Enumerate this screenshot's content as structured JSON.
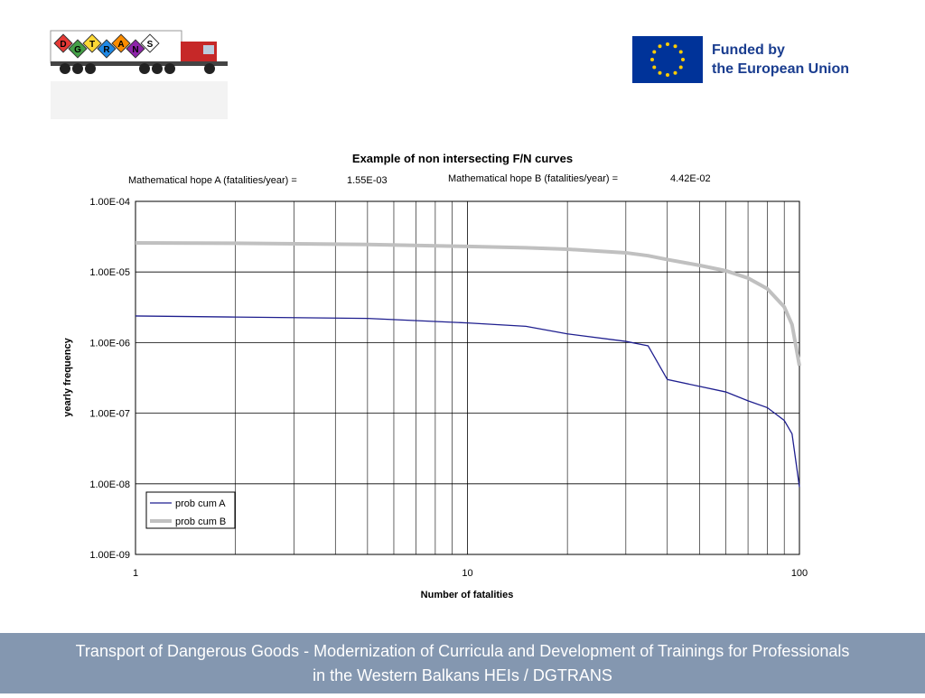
{
  "logo": {
    "letters": [
      "D",
      "G",
      "T",
      "R",
      "A",
      "N",
      "S"
    ]
  },
  "funding": {
    "lines": [
      "Funded by",
      "the European Union"
    ]
  },
  "chart_data": {
    "type": "line",
    "title": "Example of non intersecting F/N curves",
    "annotations": [
      "Mathematical hope A (fatalities/year) =",
      "1.55E-03",
      "Mathematical hope B (fatalities/year) =",
      "4.42E-02"
    ],
    "x_label": "Number of fatalities",
    "y_label": "yearly frequency",
    "x": [
      1,
      2,
      5,
      10,
      15,
      20,
      30,
      35,
      40,
      50,
      60,
      70,
      80,
      90,
      95,
      100
    ],
    "series": [
      {
        "name": "prob cum A",
        "color": "#1f1f8f",
        "values": [
          2.38e-06,
          2.3e-06,
          2.2e-06,
          1.9e-06,
          1.7e-06,
          1.33e-06,
          1.04e-06,
          9e-07,
          3e-07,
          2.4e-07,
          2e-07,
          1.5e-07,
          1.2e-07,
          7.9e-08,
          5.1e-08,
          9e-09
        ]
      },
      {
        "name": "prob cum B",
        "color": "#c0c0c0",
        "values": [
          2.58e-05,
          2.55e-05,
          2.45e-05,
          2.3e-05,
          2.2e-05,
          2.1e-05,
          1.87e-05,
          1.7e-05,
          1.5e-05,
          1.24e-05,
          1.04e-05,
          8.2e-06,
          5.8e-06,
          3.2e-06,
          1.8e-06,
          4.7e-07
        ]
      }
    ],
    "xlog": true,
    "ylog": true,
    "xlim": [
      1,
      100
    ],
    "ylim": [
      1e-09,
      0.0001
    ],
    "xticks": [
      1,
      10,
      100
    ],
    "xminorticks": [
      2,
      3,
      4,
      5,
      6,
      7,
      8,
      9,
      20,
      30,
      40,
      50,
      60,
      70,
      80,
      90
    ],
    "yticks": [
      {
        "value": 1e-09,
        "label": "1.00E-09"
      },
      {
        "value": 1e-08,
        "label": "1.00E-08"
      },
      {
        "value": 1e-07,
        "label": "1.00E-07"
      },
      {
        "value": 1e-06,
        "label": "1.00E-06"
      },
      {
        "value": 1e-05,
        "label": "1.00E-05"
      },
      {
        "value": 0.0001,
        "label": "1.00E-04"
      }
    ],
    "grid": true,
    "legend": "lower left"
  },
  "footer": {
    "lines": [
      "Transport of Dangerous Goods - Modernization of Curricula and Development of Trainings for Professionals",
      "in the Western Balkans HEIs / DGTRANS"
    ]
  }
}
